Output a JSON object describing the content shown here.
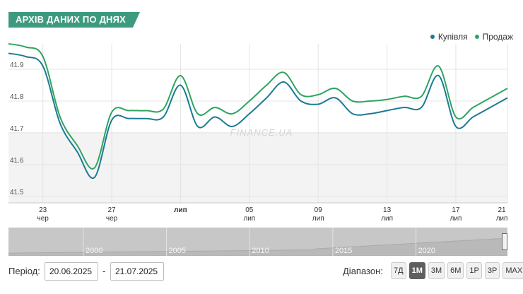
{
  "title": "АРХІВ ДАНИХ ПО ДНЯХ",
  "watermark": "FINANCE.UA",
  "colors": {
    "buy": "#1b7b93",
    "sell": "#2ea462",
    "badge": "#3e9a7e"
  },
  "chart_data": {
    "type": "line",
    "legend_position": "top-right",
    "ylim": [
      41.48,
      41.98
    ],
    "y_ticks": [
      41.5,
      41.6,
      41.7,
      41.8,
      41.9
    ],
    "x_range": [
      0,
      29
    ],
    "x_ticks": [
      {
        "x": 2,
        "day": "23",
        "month": "чер",
        "bold": false
      },
      {
        "x": 6,
        "day": "27",
        "month": "чер",
        "bold": false
      },
      {
        "x": 10,
        "day": "лип",
        "month": "",
        "bold": true
      },
      {
        "x": 14,
        "day": "05",
        "month": "лип",
        "bold": false
      },
      {
        "x": 18,
        "day": "09",
        "month": "лип",
        "bold": false
      },
      {
        "x": 22,
        "day": "13",
        "month": "лип",
        "bold": false
      },
      {
        "x": 26,
        "day": "17",
        "month": "лип",
        "bold": false
      },
      {
        "x": 30,
        "day": "21",
        "month": "лип",
        "bold": false
      }
    ],
    "series": [
      {
        "name": "Купівля",
        "color": "#1b7b93",
        "points": [
          [
            0,
            41.95
          ],
          [
            1,
            41.94
          ],
          [
            2,
            41.91
          ],
          [
            3,
            41.73
          ],
          [
            4,
            41.64
          ],
          [
            5,
            41.56
          ],
          [
            6,
            41.74
          ],
          [
            7,
            41.745
          ],
          [
            8,
            41.745
          ],
          [
            9,
            41.75
          ],
          [
            10,
            41.85
          ],
          [
            11,
            41.72
          ],
          [
            12,
            41.75
          ],
          [
            13,
            41.72
          ],
          [
            14,
            41.76
          ],
          [
            15,
            41.81
          ],
          [
            16,
            41.86
          ],
          [
            17,
            41.8
          ],
          [
            18,
            41.79
          ],
          [
            19,
            41.81
          ],
          [
            20,
            41.76
          ],
          [
            21,
            41.76
          ],
          [
            22,
            41.77
          ],
          [
            23,
            41.78
          ],
          [
            24,
            41.78
          ],
          [
            25,
            41.88
          ],
          [
            26,
            41.72
          ],
          [
            27,
            41.75
          ],
          [
            28,
            41.78
          ],
          [
            29,
            41.81
          ]
        ]
      },
      {
        "name": "Продаж",
        "color": "#2ea462",
        "points": [
          [
            0,
            41.98
          ],
          [
            1,
            41.97
          ],
          [
            2,
            41.94
          ],
          [
            3,
            41.75
          ],
          [
            4,
            41.66
          ],
          [
            5,
            41.59
          ],
          [
            6,
            41.765
          ],
          [
            7,
            41.77
          ],
          [
            8,
            41.77
          ],
          [
            9,
            41.775
          ],
          [
            10,
            41.88
          ],
          [
            11,
            41.76
          ],
          [
            12,
            41.78
          ],
          [
            13,
            41.76
          ],
          [
            14,
            41.8
          ],
          [
            15,
            41.85
          ],
          [
            16,
            41.89
          ],
          [
            17,
            41.82
          ],
          [
            18,
            41.82
          ],
          [
            19,
            41.84
          ],
          [
            20,
            41.8
          ],
          [
            21,
            41.8
          ],
          [
            22,
            41.805
          ],
          [
            23,
            41.815
          ],
          [
            24,
            41.815
          ],
          [
            25,
            41.91
          ],
          [
            26,
            41.75
          ],
          [
            27,
            41.78
          ],
          [
            28,
            41.81
          ],
          [
            29,
            41.84
          ]
        ]
      }
    ]
  },
  "navigator": {
    "year_labels": [
      {
        "label": "2000",
        "year": 2000
      },
      {
        "label": "2005",
        "year": 2005
      },
      {
        "label": "2010",
        "year": 2010
      },
      {
        "label": "2015",
        "year": 2015
      },
      {
        "label": "2020",
        "year": 2020
      }
    ],
    "year_range": [
      1995.5,
      2025.5
    ]
  },
  "controls": {
    "period_label": "Період:",
    "date_from": "20.06.2025",
    "date_to": "21.07.2025",
    "separator": "-",
    "range_label": "Діапазон:",
    "range_buttons": [
      {
        "label": "7Д",
        "active": false
      },
      {
        "label": "1М",
        "active": true
      },
      {
        "label": "3М",
        "active": false
      },
      {
        "label": "6М",
        "active": false
      },
      {
        "label": "1Р",
        "active": false
      },
      {
        "label": "3Р",
        "active": false
      },
      {
        "label": "MAX",
        "active": false
      }
    ]
  }
}
